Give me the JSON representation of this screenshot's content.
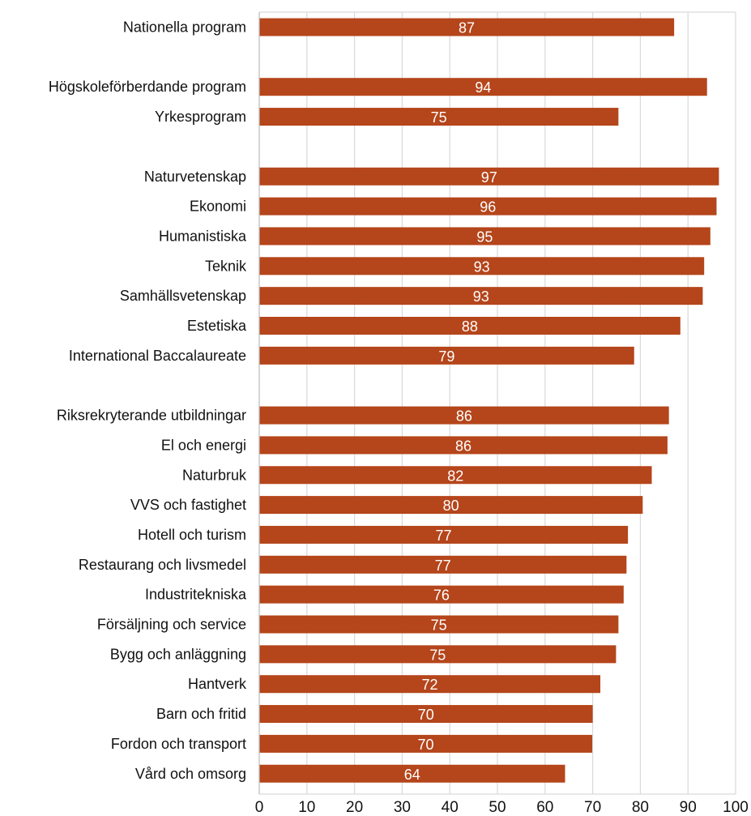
{
  "chart_data": {
    "type": "bar",
    "orientation": "horizontal",
    "title": "",
    "xlabel": "",
    "ylabel": "",
    "xlim": [
      0,
      100
    ],
    "x_ticks": [
      0,
      10,
      20,
      30,
      40,
      50,
      60,
      70,
      80,
      90,
      100
    ],
    "grid": "vertical",
    "legend": "none",
    "bar_color": "#b5451b",
    "grid_color": "#d9d9d9",
    "categories": [
      "Nationella program",
      "",
      "Högskoleförberdande program",
      "Yrkesprogram",
      "",
      "Naturvetenskap",
      "Ekonomi",
      "Humanistiska",
      "Teknik",
      "Samhällsvetenskap",
      "Estetiska",
      "International Baccalaureate",
      "",
      "Riksrekryterande utbildningar",
      "El och energi",
      "Naturbruk",
      "VVS och fastighet",
      "Hotell och turism",
      "Restaurang och livsmedel",
      "Industritekniska",
      "Försäljning och service",
      "Bygg och anläggning",
      "Hantverk",
      "Barn och fritid",
      "Fordon och transport",
      "Vård och omsorg"
    ],
    "values": [
      87.1,
      null,
      94.0,
      75.4,
      null,
      96.5,
      96.0,
      94.7,
      93.4,
      93.1,
      88.4,
      78.7,
      null,
      86.0,
      85.7,
      82.4,
      80.5,
      77.4,
      77.1,
      76.5,
      75.4,
      74.9,
      71.6,
      70.0,
      69.9,
      64.2
    ],
    "data_labels": [
      "87",
      "",
      "94",
      "75",
      "",
      "97",
      "96",
      "95",
      "93",
      "93",
      "88",
      "79",
      "",
      "86",
      "86",
      "82",
      "80",
      "77",
      "77",
      "76",
      "75",
      "75",
      "72",
      "70",
      "70",
      "64"
    ]
  }
}
